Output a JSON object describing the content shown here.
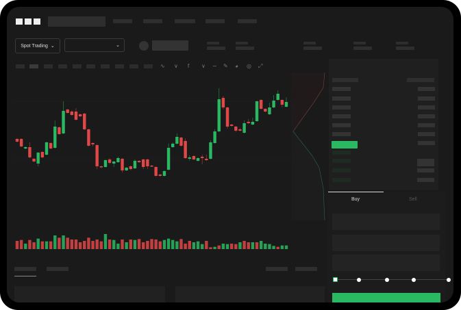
{
  "header": {
    "logo_text": "OKX"
  },
  "toolbar": {
    "market_selector": "Spot Trading",
    "pair_selector": ""
  },
  "trade_form": {
    "tabs": [
      "Buy",
      "Sell"
    ],
    "active_tab": "Buy",
    "leverage_slider_value": 0
  },
  "colors": {
    "up": "#2bb862",
    "down": "#e04848",
    "background": "#1a1a1a",
    "frame": "#000000"
  },
  "chart_data": {
    "type": "candlestick",
    "candles_ohlc": [
      [
        97,
        98,
        92,
        93
      ],
      [
        97,
        98,
        85,
        86
      ],
      [
        83,
        86,
        82,
        85
      ],
      [
        85,
        92,
        69,
        70
      ],
      [
        68,
        69,
        63,
        64
      ],
      [
        61,
        78,
        57,
        77
      ],
      [
        78,
        79,
        69,
        70
      ],
      [
        74,
        93,
        73,
        92
      ],
      [
        91,
        92,
        82,
        83
      ],
      [
        84,
        124,
        83,
        115
      ],
      [
        114,
        115,
        103,
        104
      ],
      [
        105,
        152,
        104,
        138
      ],
      [
        140,
        141,
        134,
        135
      ],
      [
        137,
        139,
        131,
        132
      ],
      [
        137,
        142,
        124,
        125
      ],
      [
        133,
        134,
        129,
        130
      ],
      [
        134,
        135,
        110,
        111
      ],
      [
        111,
        112,
        86,
        87
      ],
      [
        91,
        92,
        86,
        89
      ],
      [
        88,
        89,
        53,
        57
      ],
      [
        57,
        58,
        54,
        56
      ],
      [
        56,
        67,
        55,
        66
      ],
      [
        67,
        69,
        60,
        62
      ],
      [
        61,
        65,
        56,
        64
      ],
      [
        63,
        71,
        62,
        69
      ],
      [
        68,
        69,
        48,
        51
      ],
      [
        51,
        56,
        50,
        55
      ],
      [
        57,
        58,
        51,
        53
      ],
      [
        54,
        67,
        53,
        65
      ],
      [
        65,
        66,
        62,
        63
      ],
      [
        67,
        68,
        53,
        56
      ],
      [
        67,
        68,
        53,
        57
      ],
      [
        58,
        59,
        56,
        57
      ],
      [
        56,
        57,
        42,
        43
      ],
      [
        45,
        46,
        42,
        43
      ],
      [
        43,
        51,
        42,
        50
      ],
      [
        52,
        90,
        51,
        84
      ],
      [
        85,
        92,
        84,
        90
      ],
      [
        90,
        105,
        89,
        100
      ],
      [
        99,
        100,
        86,
        87
      ],
      [
        94,
        98,
        68,
        69
      ],
      [
        68,
        73,
        65,
        70
      ],
      [
        72,
        73,
        66,
        67
      ],
      [
        65,
        70,
        64,
        69
      ],
      [
        71,
        74,
        60,
        69
      ],
      [
        68,
        74,
        65,
        66
      ],
      [
        68,
        95,
        67,
        92
      ],
      [
        91,
        111,
        90,
        108
      ],
      [
        108,
        171,
        107,
        155
      ],
      [
        157,
        160,
        140,
        143
      ],
      [
        143,
        144,
        112,
        115
      ],
      [
        118,
        119,
        115,
        116
      ],
      [
        115,
        116,
        107,
        109
      ],
      [
        111,
        113,
        108,
        109
      ],
      [
        106,
        124,
        105,
        120
      ],
      [
        122,
        126,
        119,
        120
      ],
      [
        118,
        128,
        117,
        122
      ],
      [
        123,
        153,
        122,
        152
      ],
      [
        154,
        155,
        140,
        141
      ],
      [
        141,
        142,
        136,
        137
      ],
      [
        133,
        150,
        132,
        143
      ],
      [
        143,
        161,
        142,
        153
      ],
      [
        154,
        168,
        153,
        163
      ],
      [
        154,
        155,
        143,
        147
      ],
      [
        144,
        158,
        143,
        151
      ]
    ],
    "volume": [
      {
        "v": 36,
        "up": false
      },
      {
        "v": 40,
        "up": false
      },
      {
        "v": 24,
        "up": true
      },
      {
        "v": 40,
        "up": false
      },
      {
        "v": 30,
        "up": false
      },
      {
        "v": 46,
        "up": true
      },
      {
        "v": 34,
        "up": false
      },
      {
        "v": 34,
        "up": true
      },
      {
        "v": 34,
        "up": false
      },
      {
        "v": 60,
        "up": true
      },
      {
        "v": 50,
        "up": false
      },
      {
        "v": 60,
        "up": true
      },
      {
        "v": 50,
        "up": false
      },
      {
        "v": 42,
        "up": false
      },
      {
        "v": 42,
        "up": false
      },
      {
        "v": 30,
        "up": false
      },
      {
        "v": 36,
        "up": false
      },
      {
        "v": 50,
        "up": false
      },
      {
        "v": 36,
        "up": false
      },
      {
        "v": 42,
        "up": false
      },
      {
        "v": 34,
        "up": false
      },
      {
        "v": 66,
        "up": true
      },
      {
        "v": 42,
        "up": false
      },
      {
        "v": 40,
        "up": true
      },
      {
        "v": 24,
        "up": true
      },
      {
        "v": 42,
        "up": false
      },
      {
        "v": 30,
        "up": true
      },
      {
        "v": 42,
        "up": false
      },
      {
        "v": 40,
        "up": true
      },
      {
        "v": 44,
        "up": false
      },
      {
        "v": 30,
        "up": false
      },
      {
        "v": 36,
        "up": false
      },
      {
        "v": 44,
        "up": false
      },
      {
        "v": 42,
        "up": false
      },
      {
        "v": 34,
        "up": false
      },
      {
        "v": 40,
        "up": true
      },
      {
        "v": 46,
        "up": true
      },
      {
        "v": 40,
        "up": true
      },
      {
        "v": 34,
        "up": true
      },
      {
        "v": 44,
        "up": false
      },
      {
        "v": 24,
        "up": false
      },
      {
        "v": 36,
        "up": false
      },
      {
        "v": 30,
        "up": true
      },
      {
        "v": 34,
        "up": true
      },
      {
        "v": 22,
        "up": true
      },
      {
        "v": 36,
        "up": false
      },
      {
        "v": 8,
        "up": false
      },
      {
        "v": 10,
        "up": true
      },
      {
        "v": 16,
        "up": false
      },
      {
        "v": 24,
        "up": true
      },
      {
        "v": 22,
        "up": true
      },
      {
        "v": 24,
        "up": false
      },
      {
        "v": 22,
        "up": false
      },
      {
        "v": 30,
        "up": true
      },
      {
        "v": 36,
        "up": false
      },
      {
        "v": 30,
        "up": false
      },
      {
        "v": 30,
        "up": true
      },
      {
        "v": 30,
        "up": false
      },
      {
        "v": 36,
        "up": true
      },
      {
        "v": 24,
        "up": true
      },
      {
        "v": 22,
        "up": true
      },
      {
        "v": 14,
        "up": true
      },
      {
        "v": 10,
        "up": false
      },
      {
        "v": 16,
        "up": true
      },
      {
        "v": 16,
        "up": true
      }
    ],
    "grid": true
  }
}
